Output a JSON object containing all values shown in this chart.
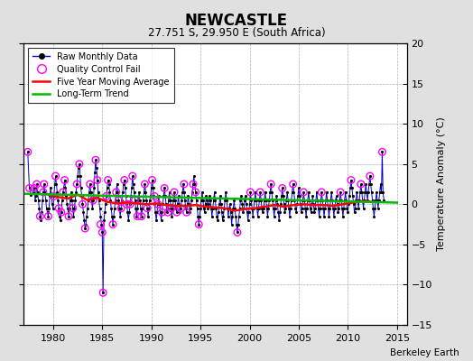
{
  "title": "NEWCASTLE",
  "subtitle": "27.751 S, 29.950 E (South Africa)",
  "ylabel_right": "Temperature Anomaly (°C)",
  "attribution": "Berkeley Earth",
  "xlim": [
    1977,
    2016
  ],
  "ylim": [
    -15,
    20
  ],
  "yticks": [
    -15,
    -10,
    -5,
    0,
    5,
    10,
    15,
    20
  ],
  "xticks": [
    1980,
    1985,
    1990,
    1995,
    2000,
    2005,
    2010,
    2015
  ],
  "bg_color": "#e0e0e0",
  "plot_bg_color": "#ffffff",
  "grid_color": "#b0b0b0",
  "raw_line_color": "#0000cc",
  "raw_marker_color": "#000000",
  "qc_fail_color": "#ff00ff",
  "moving_avg_color": "#ff0000",
  "trend_color": "#00bb00",
  "raw_data": [
    [
      1977.42,
      6.5
    ],
    [
      1977.58,
      2.0
    ],
    [
      1977.75,
      1.2
    ],
    [
      1978.0,
      1.5
    ],
    [
      1978.08,
      2.0
    ],
    [
      1978.17,
      0.5
    ],
    [
      1978.25,
      1.0
    ],
    [
      1978.33,
      2.5
    ],
    [
      1978.42,
      1.5
    ],
    [
      1978.5,
      0.5
    ],
    [
      1978.58,
      -0.5
    ],
    [
      1978.67,
      -1.5
    ],
    [
      1978.75,
      -2.0
    ],
    [
      1978.83,
      -1.0
    ],
    [
      1978.92,
      0.5
    ],
    [
      1979.0,
      1.5
    ],
    [
      1979.08,
      2.5
    ],
    [
      1979.17,
      1.5
    ],
    [
      1979.25,
      0.5
    ],
    [
      1979.33,
      -0.5
    ],
    [
      1979.42,
      -1.0
    ],
    [
      1979.5,
      -1.5
    ],
    [
      1979.58,
      -0.5
    ],
    [
      1979.67,
      1.0
    ],
    [
      1979.75,
      2.0
    ],
    [
      1979.83,
      1.0
    ],
    [
      1979.92,
      0.0
    ],
    [
      1980.0,
      -0.5
    ],
    [
      1980.08,
      1.0
    ],
    [
      1980.17,
      2.5
    ],
    [
      1980.25,
      3.5
    ],
    [
      1980.33,
      2.5
    ],
    [
      1980.42,
      1.5
    ],
    [
      1980.5,
      0.5
    ],
    [
      1980.58,
      -0.5
    ],
    [
      1980.67,
      -1.5
    ],
    [
      1980.75,
      -2.0
    ],
    [
      1980.83,
      -1.0
    ],
    [
      1980.92,
      0.5
    ],
    [
      1981.0,
      1.5
    ],
    [
      1981.08,
      2.0
    ],
    [
      1981.17,
      3.0
    ],
    [
      1981.25,
      2.0
    ],
    [
      1981.33,
      1.0
    ],
    [
      1981.42,
      0.0
    ],
    [
      1981.5,
      -0.5
    ],
    [
      1981.58,
      -1.5
    ],
    [
      1981.67,
      -0.5
    ],
    [
      1981.75,
      0.5
    ],
    [
      1981.83,
      1.5
    ],
    [
      1981.92,
      0.5
    ],
    [
      1982.0,
      -0.5
    ],
    [
      1982.08,
      -1.5
    ],
    [
      1982.17,
      -0.5
    ],
    [
      1982.25,
      0.5
    ],
    [
      1982.33,
      1.5
    ],
    [
      1982.42,
      2.5
    ],
    [
      1982.5,
      3.5
    ],
    [
      1982.58,
      4.5
    ],
    [
      1982.67,
      5.0
    ],
    [
      1982.75,
      3.5
    ],
    [
      1982.83,
      2.0
    ],
    [
      1982.92,
      1.0
    ],
    [
      1983.0,
      0.0
    ],
    [
      1983.08,
      -1.0
    ],
    [
      1983.17,
      -2.0
    ],
    [
      1983.25,
      -3.0
    ],
    [
      1983.33,
      -2.5
    ],
    [
      1983.42,
      -1.5
    ],
    [
      1983.5,
      -0.5
    ],
    [
      1983.58,
      0.5
    ],
    [
      1983.67,
      1.5
    ],
    [
      1983.75,
      2.5
    ],
    [
      1983.83,
      1.5
    ],
    [
      1983.92,
      0.5
    ],
    [
      1984.0,
      -0.5
    ],
    [
      1984.08,
      0.5
    ],
    [
      1984.17,
      2.0
    ],
    [
      1984.25,
      4.0
    ],
    [
      1984.33,
      5.5
    ],
    [
      1984.42,
      4.5
    ],
    [
      1984.5,
      3.0
    ],
    [
      1984.58,
      1.5
    ],
    [
      1984.67,
      0.5
    ],
    [
      1984.75,
      -0.5
    ],
    [
      1984.83,
      -1.5
    ],
    [
      1984.92,
      -2.5
    ],
    [
      1985.0,
      -3.5
    ],
    [
      1985.08,
      -11.0
    ],
    [
      1985.17,
      -2.0
    ],
    [
      1985.25,
      -1.0
    ],
    [
      1985.33,
      0.0
    ],
    [
      1985.42,
      1.0
    ],
    [
      1985.5,
      2.0
    ],
    [
      1985.58,
      3.0
    ],
    [
      1985.67,
      2.5
    ],
    [
      1985.75,
      1.5
    ],
    [
      1985.83,
      0.5
    ],
    [
      1985.92,
      -0.5
    ],
    [
      1986.0,
      -1.5
    ],
    [
      1986.08,
      -2.5
    ],
    [
      1986.17,
      -1.5
    ],
    [
      1986.25,
      -0.5
    ],
    [
      1986.33,
      0.5
    ],
    [
      1986.42,
      1.5
    ],
    [
      1986.5,
      2.5
    ],
    [
      1986.58,
      1.5
    ],
    [
      1986.67,
      0.5
    ],
    [
      1986.75,
      -0.5
    ],
    [
      1986.83,
      -1.5
    ],
    [
      1986.92,
      -0.5
    ],
    [
      1987.0,
      0.5
    ],
    [
      1987.08,
      1.5
    ],
    [
      1987.17,
      2.5
    ],
    [
      1987.25,
      3.0
    ],
    [
      1987.33,
      2.0
    ],
    [
      1987.42,
      1.0
    ],
    [
      1987.5,
      0.0
    ],
    [
      1987.58,
      -1.0
    ],
    [
      1987.67,
      -2.0
    ],
    [
      1987.75,
      -1.0
    ],
    [
      1987.83,
      0.0
    ],
    [
      1987.92,
      1.0
    ],
    [
      1988.0,
      2.0
    ],
    [
      1988.08,
      3.5
    ],
    [
      1988.17,
      2.5
    ],
    [
      1988.25,
      1.5
    ],
    [
      1988.33,
      0.5
    ],
    [
      1988.42,
      -0.5
    ],
    [
      1988.5,
      -1.5
    ],
    [
      1988.58,
      -0.5
    ],
    [
      1988.67,
      0.5
    ],
    [
      1988.75,
      1.5
    ],
    [
      1988.83,
      0.5
    ],
    [
      1988.92,
      -0.5
    ],
    [
      1989.0,
      -1.5
    ],
    [
      1989.08,
      -0.5
    ],
    [
      1989.17,
      0.5
    ],
    [
      1989.25,
      1.5
    ],
    [
      1989.33,
      2.5
    ],
    [
      1989.42,
      1.5
    ],
    [
      1989.5,
      0.5
    ],
    [
      1989.58,
      -0.5
    ],
    [
      1989.67,
      -1.5
    ],
    [
      1989.75,
      -0.5
    ],
    [
      1989.83,
      0.5
    ],
    [
      1989.92,
      1.0
    ],
    [
      1990.0,
      2.0
    ],
    [
      1990.08,
      3.0
    ],
    [
      1990.17,
      2.0
    ],
    [
      1990.25,
      1.0
    ],
    [
      1990.33,
      0.0
    ],
    [
      1990.42,
      -1.0
    ],
    [
      1990.5,
      -2.0
    ],
    [
      1990.58,
      -1.0
    ],
    [
      1990.67,
      0.0
    ],
    [
      1990.75,
      1.0
    ],
    [
      1990.83,
      0.0
    ],
    [
      1990.92,
      -1.0
    ],
    [
      1991.0,
      -2.0
    ],
    [
      1991.08,
      -1.0
    ],
    [
      1991.17,
      0.0
    ],
    [
      1991.25,
      1.0
    ],
    [
      1991.33,
      2.0
    ],
    [
      1991.42,
      1.0
    ],
    [
      1991.5,
      0.0
    ],
    [
      1991.58,
      -1.0
    ],
    [
      1991.67,
      -0.5
    ],
    [
      1991.75,
      0.5
    ],
    [
      1991.83,
      1.5
    ],
    [
      1991.92,
      0.5
    ],
    [
      1992.0,
      -0.5
    ],
    [
      1992.08,
      -1.5
    ],
    [
      1992.17,
      -0.5
    ],
    [
      1992.25,
      0.5
    ],
    [
      1992.33,
      1.5
    ],
    [
      1992.42,
      0.5
    ],
    [
      1992.5,
      -0.5
    ],
    [
      1992.58,
      -1.0
    ],
    [
      1992.67,
      0.0
    ],
    [
      1992.75,
      1.0
    ],
    [
      1992.83,
      0.0
    ],
    [
      1992.92,
      -1.0
    ],
    [
      1993.0,
      -0.5
    ],
    [
      1993.08,
      0.5
    ],
    [
      1993.17,
      1.5
    ],
    [
      1993.25,
      2.5
    ],
    [
      1993.33,
      1.5
    ],
    [
      1993.42,
      0.5
    ],
    [
      1993.5,
      -0.5
    ],
    [
      1993.58,
      -1.0
    ],
    [
      1993.67,
      0.0
    ],
    [
      1993.75,
      1.0
    ],
    [
      1993.83,
      0.0
    ],
    [
      1993.92,
      -1.0
    ],
    [
      1994.0,
      -0.5
    ],
    [
      1994.08,
      0.5
    ],
    [
      1994.17,
      1.5
    ],
    [
      1994.25,
      2.5
    ],
    [
      1994.33,
      3.5
    ],
    [
      1994.42,
      2.5
    ],
    [
      1994.5,
      1.5
    ],
    [
      1994.58,
      0.5
    ],
    [
      1994.67,
      -0.5
    ],
    [
      1994.75,
      -1.5
    ],
    [
      1994.83,
      -2.5
    ],
    [
      1994.92,
      -1.5
    ],
    [
      1995.0,
      -0.5
    ],
    [
      1995.08,
      0.5
    ],
    [
      1995.17,
      1.5
    ],
    [
      1995.25,
      0.5
    ],
    [
      1995.33,
      -0.5
    ],
    [
      1995.42,
      -1.0
    ],
    [
      1995.5,
      0.0
    ],
    [
      1995.58,
      1.0
    ],
    [
      1995.67,
      0.5
    ],
    [
      1995.75,
      -0.5
    ],
    [
      1995.83,
      0.0
    ],
    [
      1995.92,
      1.0
    ],
    [
      1996.0,
      0.5
    ],
    [
      1996.08,
      -0.5
    ],
    [
      1996.17,
      -1.5
    ],
    [
      1996.25,
      -0.5
    ],
    [
      1996.33,
      0.5
    ],
    [
      1996.42,
      1.5
    ],
    [
      1996.5,
      0.5
    ],
    [
      1996.58,
      -0.5
    ],
    [
      1996.67,
      -1.5
    ],
    [
      1996.75,
      -2.0
    ],
    [
      1996.83,
      -1.0
    ],
    [
      1996.92,
      0.0
    ],
    [
      1997.0,
      1.0
    ],
    [
      1997.08,
      0.0
    ],
    [
      1997.17,
      -1.0
    ],
    [
      1997.25,
      -2.0
    ],
    [
      1997.33,
      -1.5
    ],
    [
      1997.42,
      -0.5
    ],
    [
      1997.5,
      0.5
    ],
    [
      1997.58,
      1.5
    ],
    [
      1997.67,
      0.5
    ],
    [
      1997.75,
      -0.5
    ],
    [
      1997.83,
      -1.5
    ],
    [
      1997.92,
      -0.5
    ],
    [
      1998.0,
      0.0
    ],
    [
      1998.08,
      -1.0
    ],
    [
      1998.17,
      -2.5
    ],
    [
      1998.25,
      -1.5
    ],
    [
      1998.33,
      -0.5
    ],
    [
      1998.42,
      0.5
    ],
    [
      1998.5,
      -0.5
    ],
    [
      1998.58,
      -1.5
    ],
    [
      1998.67,
      -2.5
    ],
    [
      1998.75,
      -3.5
    ],
    [
      1998.83,
      -2.5
    ],
    [
      1998.92,
      -1.5
    ],
    [
      1999.0,
      -0.5
    ],
    [
      1999.08,
      0.5
    ],
    [
      1999.17,
      1.0
    ],
    [
      1999.25,
      0.0
    ],
    [
      1999.33,
      -1.0
    ],
    [
      1999.42,
      -0.5
    ],
    [
      1999.5,
      0.5
    ],
    [
      1999.58,
      1.0
    ],
    [
      1999.67,
      0.0
    ],
    [
      1999.75,
      -1.0
    ],
    [
      1999.83,
      -2.0
    ],
    [
      1999.92,
      -1.0
    ],
    [
      2000.0,
      0.0
    ],
    [
      2000.08,
      1.5
    ],
    [
      2000.17,
      0.5
    ],
    [
      2000.25,
      -0.5
    ],
    [
      2000.33,
      -1.5
    ],
    [
      2000.42,
      -0.5
    ],
    [
      2000.5,
      0.5
    ],
    [
      2000.58,
      1.5
    ],
    [
      2000.67,
      0.5
    ],
    [
      2000.75,
      -0.5
    ],
    [
      2000.83,
      -1.5
    ],
    [
      2000.92,
      -0.5
    ],
    [
      2001.0,
      0.5
    ],
    [
      2001.08,
      1.5
    ],
    [
      2001.17,
      0.5
    ],
    [
      2001.25,
      -0.5
    ],
    [
      2001.33,
      -1.0
    ],
    [
      2001.42,
      -0.5
    ],
    [
      2001.5,
      0.5
    ],
    [
      2001.58,
      1.5
    ],
    [
      2001.67,
      0.5
    ],
    [
      2001.75,
      -0.5
    ],
    [
      2001.83,
      -1.5
    ],
    [
      2001.92,
      -0.5
    ],
    [
      2002.0,
      0.5
    ],
    [
      2002.08,
      1.5
    ],
    [
      2002.17,
      2.5
    ],
    [
      2002.25,
      1.5
    ],
    [
      2002.33,
      0.5
    ],
    [
      2002.42,
      -0.5
    ],
    [
      2002.5,
      -1.5
    ],
    [
      2002.58,
      -0.5
    ],
    [
      2002.67,
      0.5
    ],
    [
      2002.75,
      1.0
    ],
    [
      2002.83,
      0.0
    ],
    [
      2002.92,
      -1.0
    ],
    [
      2003.0,
      -2.0
    ],
    [
      2003.08,
      -1.0
    ],
    [
      2003.17,
      0.0
    ],
    [
      2003.25,
      1.0
    ],
    [
      2003.33,
      2.0
    ],
    [
      2003.42,
      1.0
    ],
    [
      2003.5,
      0.0
    ],
    [
      2003.58,
      -1.0
    ],
    [
      2003.67,
      -0.5
    ],
    [
      2003.75,
      0.5
    ],
    [
      2003.83,
      1.5
    ],
    [
      2003.92,
      0.5
    ],
    [
      2004.0,
      -0.5
    ],
    [
      2004.08,
      -1.5
    ],
    [
      2004.17,
      -0.5
    ],
    [
      2004.25,
      0.5
    ],
    [
      2004.33,
      1.5
    ],
    [
      2004.42,
      2.5
    ],
    [
      2004.5,
      1.5
    ],
    [
      2004.58,
      0.5
    ],
    [
      2004.67,
      -0.5
    ],
    [
      2004.75,
      -1.0
    ],
    [
      2004.83,
      0.0
    ],
    [
      2004.92,
      1.0
    ],
    [
      2005.0,
      2.0
    ],
    [
      2005.08,
      1.0
    ],
    [
      2005.17,
      0.0
    ],
    [
      2005.25,
      -1.0
    ],
    [
      2005.33,
      -0.5
    ],
    [
      2005.42,
      0.5
    ],
    [
      2005.5,
      1.5
    ],
    [
      2005.58,
      0.5
    ],
    [
      2005.67,
      -0.5
    ],
    [
      2005.75,
      -1.5
    ],
    [
      2005.83,
      -0.5
    ],
    [
      2005.92,
      0.5
    ],
    [
      2006.0,
      1.5
    ],
    [
      2006.08,
      0.5
    ],
    [
      2006.17,
      -0.5
    ],
    [
      2006.25,
      -1.0
    ],
    [
      2006.33,
      0.0
    ],
    [
      2006.42,
      1.0
    ],
    [
      2006.5,
      0.0
    ],
    [
      2006.58,
      -1.0
    ],
    [
      2006.67,
      -0.5
    ],
    [
      2006.75,
      0.5
    ],
    [
      2006.83,
      1.5
    ],
    [
      2006.92,
      0.5
    ],
    [
      2007.0,
      -0.5
    ],
    [
      2007.08,
      -1.5
    ],
    [
      2007.17,
      -0.5
    ],
    [
      2007.25,
      0.5
    ],
    [
      2007.33,
      1.5
    ],
    [
      2007.42,
      0.5
    ],
    [
      2007.5,
      -0.5
    ],
    [
      2007.58,
      -1.5
    ],
    [
      2007.67,
      -0.5
    ],
    [
      2007.75,
      0.5
    ],
    [
      2007.83,
      1.5
    ],
    [
      2007.92,
      0.5
    ],
    [
      2008.0,
      -0.5
    ],
    [
      2008.08,
      -1.5
    ],
    [
      2008.17,
      -0.5
    ],
    [
      2008.25,
      0.5
    ],
    [
      2008.33,
      1.5
    ],
    [
      2008.42,
      0.5
    ],
    [
      2008.5,
      -0.5
    ],
    [
      2008.58,
      -1.5
    ],
    [
      2008.67,
      -0.5
    ],
    [
      2008.75,
      0.5
    ],
    [
      2008.83,
      1.0
    ],
    [
      2008.92,
      0.0
    ],
    [
      2009.0,
      -1.0
    ],
    [
      2009.08,
      -0.5
    ],
    [
      2009.17,
      0.5
    ],
    [
      2009.25,
      1.5
    ],
    [
      2009.33,
      0.5
    ],
    [
      2009.42,
      -0.5
    ],
    [
      2009.5,
      -1.5
    ],
    [
      2009.58,
      -0.5
    ],
    [
      2009.67,
      0.5
    ],
    [
      2009.75,
      1.5
    ],
    [
      2009.83,
      0.5
    ],
    [
      2009.92,
      -0.5
    ],
    [
      2010.0,
      -1.0
    ],
    [
      2010.08,
      0.0
    ],
    [
      2010.17,
      1.0
    ],
    [
      2010.25,
      2.0
    ],
    [
      2010.33,
      3.0
    ],
    [
      2010.42,
      2.0
    ],
    [
      2010.5,
      1.0
    ],
    [
      2010.58,
      0.0
    ],
    [
      2010.67,
      -1.0
    ],
    [
      2010.75,
      -0.5
    ],
    [
      2010.83,
      0.5
    ],
    [
      2010.92,
      1.5
    ],
    [
      2011.0,
      0.5
    ],
    [
      2011.08,
      -0.5
    ],
    [
      2011.17,
      0.5
    ],
    [
      2011.25,
      1.5
    ],
    [
      2011.33,
      2.5
    ],
    [
      2011.42,
      1.5
    ],
    [
      2011.5,
      0.5
    ],
    [
      2011.58,
      -0.5
    ],
    [
      2011.67,
      0.5
    ],
    [
      2011.75,
      1.5
    ],
    [
      2011.83,
      2.5
    ],
    [
      2011.92,
      1.5
    ],
    [
      2012.0,
      0.5
    ],
    [
      2012.08,
      1.5
    ],
    [
      2012.17,
      2.5
    ],
    [
      2012.25,
      3.5
    ],
    [
      2012.33,
      2.5
    ],
    [
      2012.42,
      1.5
    ],
    [
      2012.5,
      0.5
    ],
    [
      2012.58,
      -0.5
    ],
    [
      2012.67,
      -1.5
    ],
    [
      2012.75,
      -0.5
    ],
    [
      2012.83,
      0.5
    ],
    [
      2012.92,
      1.5
    ],
    [
      2013.0,
      0.5
    ],
    [
      2013.08,
      -0.5
    ],
    [
      2013.17,
      0.5
    ],
    [
      2013.25,
      1.5
    ],
    [
      2013.33,
      2.5
    ],
    [
      2013.42,
      1.5
    ],
    [
      2013.5,
      6.5
    ],
    [
      2013.58,
      1.5
    ],
    [
      2013.67,
      0.5
    ]
  ],
  "qc_fail_x": [
    1977.42,
    1977.58,
    1978.08,
    1978.33,
    1978.67,
    1979.0,
    1979.08,
    1979.5,
    1980.08,
    1980.25,
    1980.58,
    1980.83,
    1981.0,
    1981.17,
    1981.58,
    1982.0,
    1982.42,
    1982.67,
    1983.0,
    1983.25,
    1983.75,
    1984.08,
    1984.33,
    1984.5,
    1984.83,
    1985.0,
    1985.08,
    1985.42,
    1985.58,
    1986.08,
    1986.42,
    1986.67,
    1986.92,
    1987.25,
    1987.5,
    1987.83,
    1988.08,
    1988.33,
    1988.58,
    1989.0,
    1989.33,
    1989.58,
    1990.08,
    1990.33,
    1990.67,
    1991.08,
    1991.33,
    1991.67,
    1992.0,
    1992.33,
    1992.58,
    1993.0,
    1993.33,
    1993.58,
    1994.25,
    1994.5,
    1994.83,
    1998.75,
    2000.08,
    2001.08,
    2002.17,
    2003.33,
    2004.42,
    2005.5,
    2007.33,
    2009.25,
    2010.33,
    2011.33,
    2012.25,
    2013.5
  ],
  "qc_fail_y": [
    6.5,
    2.0,
    2.0,
    2.5,
    -1.5,
    1.5,
    2.5,
    -1.5,
    1.0,
    3.5,
    -0.5,
    -1.0,
    1.5,
    3.0,
    -1.5,
    -0.5,
    2.5,
    5.0,
    0.0,
    -3.0,
    2.5,
    0.5,
    5.5,
    3.0,
    -2.5,
    -3.5,
    -11.0,
    1.0,
    3.0,
    -2.5,
    1.5,
    0.5,
    -0.5,
    3.0,
    0.0,
    0.0,
    3.5,
    0.5,
    -1.5,
    -1.5,
    2.5,
    -0.5,
    3.0,
    1.0,
    0.0,
    -1.0,
    2.0,
    -1.0,
    -0.5,
    1.5,
    -1.0,
    -0.5,
    2.5,
    -1.0,
    2.5,
    1.5,
    -2.5,
    -3.5,
    1.5,
    1.5,
    2.5,
    2.0,
    2.5,
    1.5,
    1.5,
    1.5,
    3.0,
    2.5,
    3.5,
    6.5
  ],
  "moving_avg_x": [
    1979.5,
    1980.5,
    1981.5,
    1982.5,
    1983.5,
    1984.5,
    1985.5,
    1986.5,
    1987.5,
    1988.5,
    1989.5,
    1990.5,
    1991.5,
    1992.5,
    1993.5,
    1994.5,
    1995.5,
    1996.5,
    1997.5,
    1998.5,
    1999.5,
    2000.5,
    2001.5,
    2002.5,
    2003.5,
    2004.5,
    2005.5,
    2006.5,
    2007.5,
    2008.5,
    2009.5,
    2010.5,
    2011.5,
    2012.5
  ],
  "moving_avg_y": [
    1.2,
    0.9,
    0.7,
    1.2,
    0.5,
    0.8,
    0.3,
    0.1,
    0.2,
    0.1,
    0.0,
    0.1,
    -0.1,
    -0.2,
    -0.2,
    -0.1,
    -0.3,
    -0.4,
    -0.5,
    -0.8,
    -0.6,
    -0.5,
    -0.3,
    -0.1,
    -0.3,
    -0.1,
    -0.0,
    -0.1,
    -0.1,
    -0.2,
    -0.0,
    0.2,
    0.4,
    0.3
  ],
  "trend_x": [
    1977,
    2015
  ],
  "trend_y": [
    1.3,
    0.2
  ]
}
